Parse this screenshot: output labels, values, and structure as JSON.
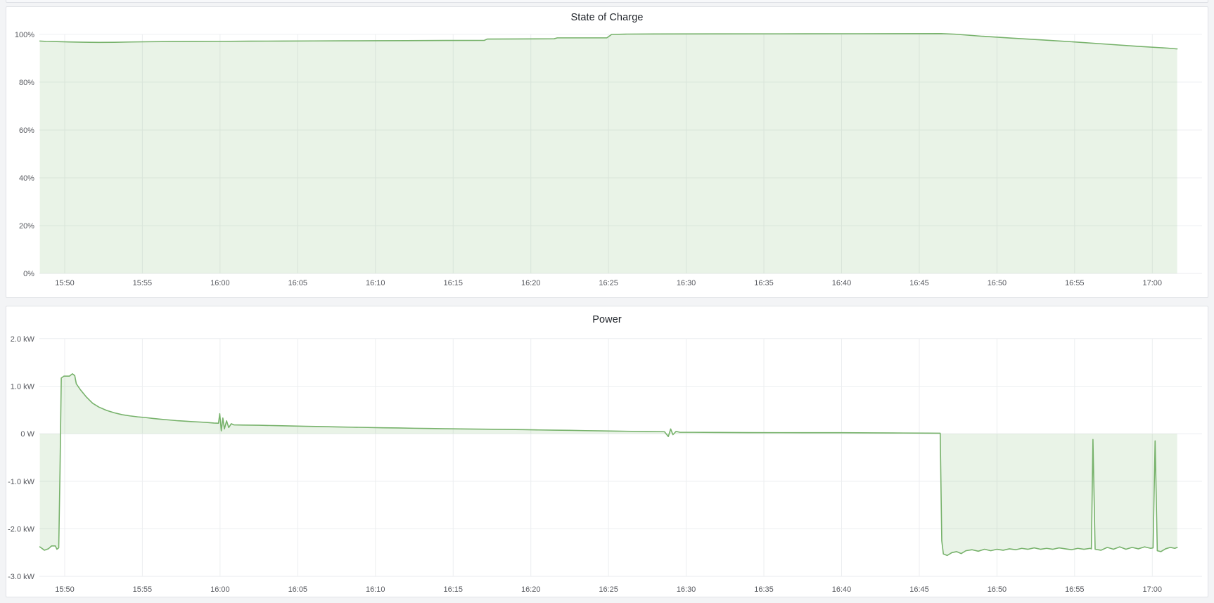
{
  "page": {
    "background": "#f3f4f6",
    "panel_background": "#ffffff",
    "panel_border": "#e0e2e6"
  },
  "chart_data": [
    {
      "type": "area",
      "title": "State of Charge",
      "legend": "none",
      "grid": true,
      "accent_color": "#77b26b",
      "fill_color": "rgba(119,178,107,0.16)",
      "x_axis": {
        "unit": "time",
        "range_minutes_since_1500": [
          48.37,
          123.2
        ],
        "tick_minutes": [
          50,
          55,
          60,
          65,
          70,
          75,
          80,
          85,
          90,
          95,
          100,
          105,
          110,
          115,
          120
        ],
        "tick_labels": [
          "15:50",
          "15:55",
          "16:00",
          "16:05",
          "16:10",
          "16:15",
          "16:20",
          "16:25",
          "16:30",
          "16:35",
          "16:40",
          "16:45",
          "16:50",
          "16:55",
          "17:00"
        ]
      },
      "y_axis": {
        "range": [
          0,
          100
        ],
        "tick_values": [
          100,
          80,
          60,
          40,
          20,
          0
        ],
        "tick_labels": [
          "100%",
          "80%",
          "60%",
          "40%",
          "20%",
          "0%"
        ]
      },
      "series": [
        {
          "name": "State of Charge",
          "baseline": 0,
          "points": [
            [
              48.4,
              97.2
            ],
            [
              48.8,
              97.05
            ],
            [
              49.5,
              96.95
            ],
            [
              50.3,
              96.8
            ],
            [
              51.2,
              96.7
            ],
            [
              52.2,
              96.62
            ],
            [
              53.2,
              96.68
            ],
            [
              54.2,
              96.78
            ],
            [
              55.5,
              96.9
            ],
            [
              57,
              96.98
            ],
            [
              58.5,
              97.02
            ],
            [
              60,
              97.06
            ],
            [
              62,
              97.12
            ],
            [
              64,
              97.17
            ],
            [
              66,
              97.22
            ],
            [
              68,
              97.27
            ],
            [
              70,
              97.32
            ],
            [
              72,
              97.37
            ],
            [
              74.5,
              97.42
            ],
            [
              77.0,
              97.46
            ],
            [
              77.2,
              98.0
            ],
            [
              79,
              98.05
            ],
            [
              81.5,
              98.12
            ],
            [
              81.7,
              98.5
            ],
            [
              84.9,
              98.55
            ],
            [
              85.2,
              99.95
            ],
            [
              86.2,
              100.08
            ],
            [
              88,
              100.15
            ],
            [
              92,
              100.18
            ],
            [
              96,
              100.2
            ],
            [
              101,
              100.24
            ],
            [
              106.4,
              100.3
            ],
            [
              107.3,
              100.05
            ],
            [
              109,
              99.2
            ],
            [
              111,
              98.4
            ],
            [
              113,
              97.6
            ],
            [
              115,
              96.8
            ],
            [
              117,
              95.9
            ],
            [
              119,
              95.0
            ],
            [
              121,
              94.2
            ],
            [
              121.6,
              93.9
            ]
          ]
        }
      ]
    },
    {
      "type": "area",
      "title": "Power",
      "legend": "none",
      "grid": true,
      "accent_color": "#77b26b",
      "fill_color": "rgba(119,178,107,0.16)",
      "x_axis": {
        "unit": "time",
        "range_minutes_since_1500": [
          48.37,
          123.2
        ],
        "tick_minutes": [
          50,
          55,
          60,
          65,
          70,
          75,
          80,
          85,
          90,
          95,
          100,
          105,
          110,
          115,
          120
        ],
        "tick_labels": [
          "15:50",
          "15:55",
          "16:00",
          "16:05",
          "16:10",
          "16:15",
          "16:20",
          "16:25",
          "16:30",
          "16:35",
          "16:40",
          "16:45",
          "16:50",
          "16:55",
          "17:00"
        ]
      },
      "y_axis": {
        "range": [
          -3.0,
          2.0
        ],
        "tick_values": [
          2,
          1,
          0,
          -1,
          -2,
          -3
        ],
        "tick_labels": [
          "2.0 kW",
          "1.0 kW",
          "0 W",
          "-1.0 kW",
          "-2.0 kW",
          "-3.0 kW"
        ]
      },
      "series": [
        {
          "name": "Power",
          "baseline": 0,
          "points": [
            [
              48.4,
              -2.38
            ],
            [
              48.7,
              -2.45
            ],
            [
              48.95,
              -2.42
            ],
            [
              49.15,
              -2.36
            ],
            [
              49.4,
              -2.36
            ],
            [
              49.5,
              -2.43
            ],
            [
              49.62,
              -2.4
            ],
            [
              49.7,
              -0.8
            ],
            [
              49.78,
              1.17
            ],
            [
              49.95,
              1.21
            ],
            [
              50.3,
              1.21
            ],
            [
              50.5,
              1.26
            ],
            [
              50.65,
              1.22
            ],
            [
              50.75,
              1.05
            ],
            [
              51,
              0.93
            ],
            [
              51.4,
              0.77
            ],
            [
              51.8,
              0.64
            ],
            [
              52.2,
              0.56
            ],
            [
              52.7,
              0.49
            ],
            [
              53.2,
              0.44
            ],
            [
              53.7,
              0.4
            ],
            [
              54.2,
              0.375
            ],
            [
              54.7,
              0.355
            ],
            [
              55.2,
              0.34
            ],
            [
              55.7,
              0.32
            ],
            [
              56.2,
              0.305
            ],
            [
              56.7,
              0.29
            ],
            [
              57.2,
              0.275
            ],
            [
              57.7,
              0.265
            ],
            [
              58.2,
              0.255
            ],
            [
              58.7,
              0.245
            ],
            [
              59.2,
              0.235
            ],
            [
              59.6,
              0.225
            ],
            [
              59.9,
              0.22
            ],
            [
              59.98,
              0.42
            ],
            [
              60.08,
              0.06
            ],
            [
              60.18,
              0.33
            ],
            [
              60.28,
              0.1
            ],
            [
              60.42,
              0.27
            ],
            [
              60.56,
              0.13
            ],
            [
              60.72,
              0.21
            ],
            [
              60.9,
              0.185
            ],
            [
              61.5,
              0.183
            ],
            [
              62.5,
              0.178
            ],
            [
              63.5,
              0.17
            ],
            [
              64.5,
              0.163
            ],
            [
              65.5,
              0.156
            ],
            [
              66.5,
              0.15
            ],
            [
              67.5,
              0.143
            ],
            [
              68.5,
              0.137
            ],
            [
              69.5,
              0.131
            ],
            [
              70.5,
              0.125
            ],
            [
              71.5,
              0.12
            ],
            [
              72.5,
              0.115
            ],
            [
              73.5,
              0.11
            ],
            [
              74.5,
              0.105
            ],
            [
              75.5,
              0.1
            ],
            [
              76.5,
              0.097
            ],
            [
              77.5,
              0.093
            ],
            [
              78.5,
              0.089
            ],
            [
              79.5,
              0.085
            ],
            [
              80.5,
              0.08
            ],
            [
              81.5,
              0.075
            ],
            [
              82.5,
              0.07
            ],
            [
              83.5,
              0.065
            ],
            [
              84.5,
              0.06
            ],
            [
              85.5,
              0.055
            ],
            [
              86.5,
              0.05
            ],
            [
              87.5,
              0.046
            ],
            [
              88.6,
              0.042
            ],
            [
              88.85,
              -0.06
            ],
            [
              89.0,
              0.1
            ],
            [
              89.15,
              -0.02
            ],
            [
              89.35,
              0.05
            ],
            [
              89.6,
              0.03
            ],
            [
              90.5,
              0.03
            ],
            [
              92,
              0.027
            ],
            [
              94,
              0.024
            ],
            [
              96,
              0.022
            ],
            [
              98,
              0.02
            ],
            [
              100,
              0.02
            ],
            [
              102,
              0.018
            ],
            [
              104,
              0.015
            ],
            [
              105.5,
              0.012
            ],
            [
              106.35,
              0.01
            ],
            [
              106.45,
              -2.25
            ],
            [
              106.55,
              -2.53
            ],
            [
              106.8,
              -2.56
            ],
            [
              107.1,
              -2.5
            ],
            [
              107.4,
              -2.48
            ],
            [
              107.7,
              -2.52
            ],
            [
              108,
              -2.46
            ],
            [
              108.4,
              -2.44
            ],
            [
              108.8,
              -2.47
            ],
            [
              109.2,
              -2.43
            ],
            [
              109.6,
              -2.46
            ],
            [
              110,
              -2.43
            ],
            [
              110.4,
              -2.45
            ],
            [
              110.8,
              -2.42
            ],
            [
              111.2,
              -2.44
            ],
            [
              111.6,
              -2.41
            ],
            [
              112,
              -2.43
            ],
            [
              112.4,
              -2.4
            ],
            [
              112.8,
              -2.43
            ],
            [
              113.2,
              -2.41
            ],
            [
              113.6,
              -2.43
            ],
            [
              114,
              -2.4
            ],
            [
              114.4,
              -2.42
            ],
            [
              114.8,
              -2.44
            ],
            [
              115.2,
              -2.41
            ],
            [
              115.6,
              -2.43
            ],
            [
              116.0,
              -2.41
            ],
            [
              116.08,
              -2.42
            ],
            [
              116.18,
              -0.12
            ],
            [
              116.32,
              -2.43
            ],
            [
              116.7,
              -2.45
            ],
            [
              117.1,
              -2.39
            ],
            [
              117.5,
              -2.43
            ],
            [
              117.9,
              -2.38
            ],
            [
              118.3,
              -2.43
            ],
            [
              118.7,
              -2.39
            ],
            [
              119.1,
              -2.42
            ],
            [
              119.5,
              -2.38
            ],
            [
              119.9,
              -2.41
            ],
            [
              120.05,
              -2.4
            ],
            [
              120.18,
              -0.15
            ],
            [
              120.32,
              -2.46
            ],
            [
              120.55,
              -2.48
            ],
            [
              120.85,
              -2.42
            ],
            [
              121.15,
              -2.39
            ],
            [
              121.45,
              -2.41
            ],
            [
              121.6,
              -2.39
            ]
          ]
        }
      ]
    }
  ],
  "style": {
    "grid_color": "#eceef0",
    "tick_text_color": "#56585e",
    "title_color": "#1f2329"
  }
}
